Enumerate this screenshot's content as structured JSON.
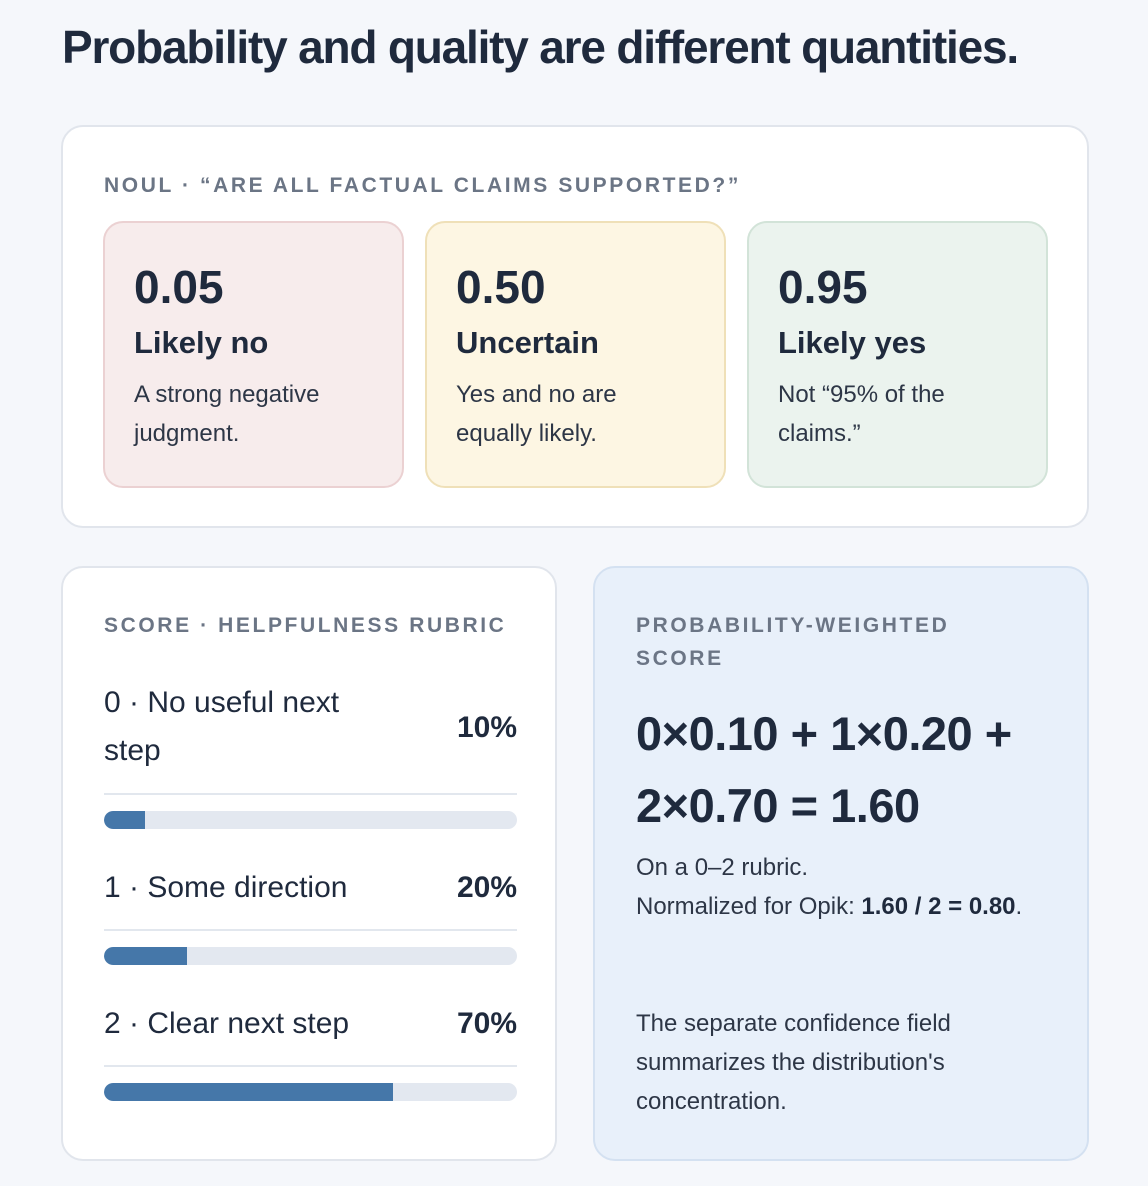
{
  "title": "Probability and quality are different quantities.",
  "noul": {
    "eyebrow": "NOUL · “ARE ALL FACTUAL CLAIMS SUPPORTED?”",
    "tiles": [
      {
        "value": "0.05",
        "label": "Likely no",
        "desc": "A strong negative judgment.",
        "bg": "#f7ecec"
      },
      {
        "value": "0.50",
        "label": "Uncertain",
        "desc": "Yes and no are equally likely.",
        "bg": "#fdf6e3"
      },
      {
        "value": "0.95",
        "label": "Likely yes",
        "desc": "Not “95% of the claims.”",
        "bg": "#ebf3ee"
      }
    ]
  },
  "score": {
    "eyebrow": "SCORE · HELPFULNESS RUBRIC",
    "rows": [
      {
        "label": "0 · No useful next step",
        "percent": "10%",
        "fraction": 0.1
      },
      {
        "label": "1 · Some direction",
        "percent": "20%",
        "fraction": 0.2
      },
      {
        "label": "2 · Clear next step",
        "percent": "70%",
        "fraction": 0.7
      }
    ],
    "bar_color": "#4577a9"
  },
  "weighted": {
    "eyebrow": "PROBABILITY-WEIGHTED SCORE",
    "formula": "0×0.10 + 1×0.20 + 2×0.70 = 1.60",
    "line1": "On a 0–2 rubric.",
    "line2_prefix": "Normalized for Opik: ",
    "line2_bold": "1.60 / 2 = 0.80",
    "line2_suffix": ".",
    "note": "The separate confidence field summarizes the distribution's concentration."
  }
}
